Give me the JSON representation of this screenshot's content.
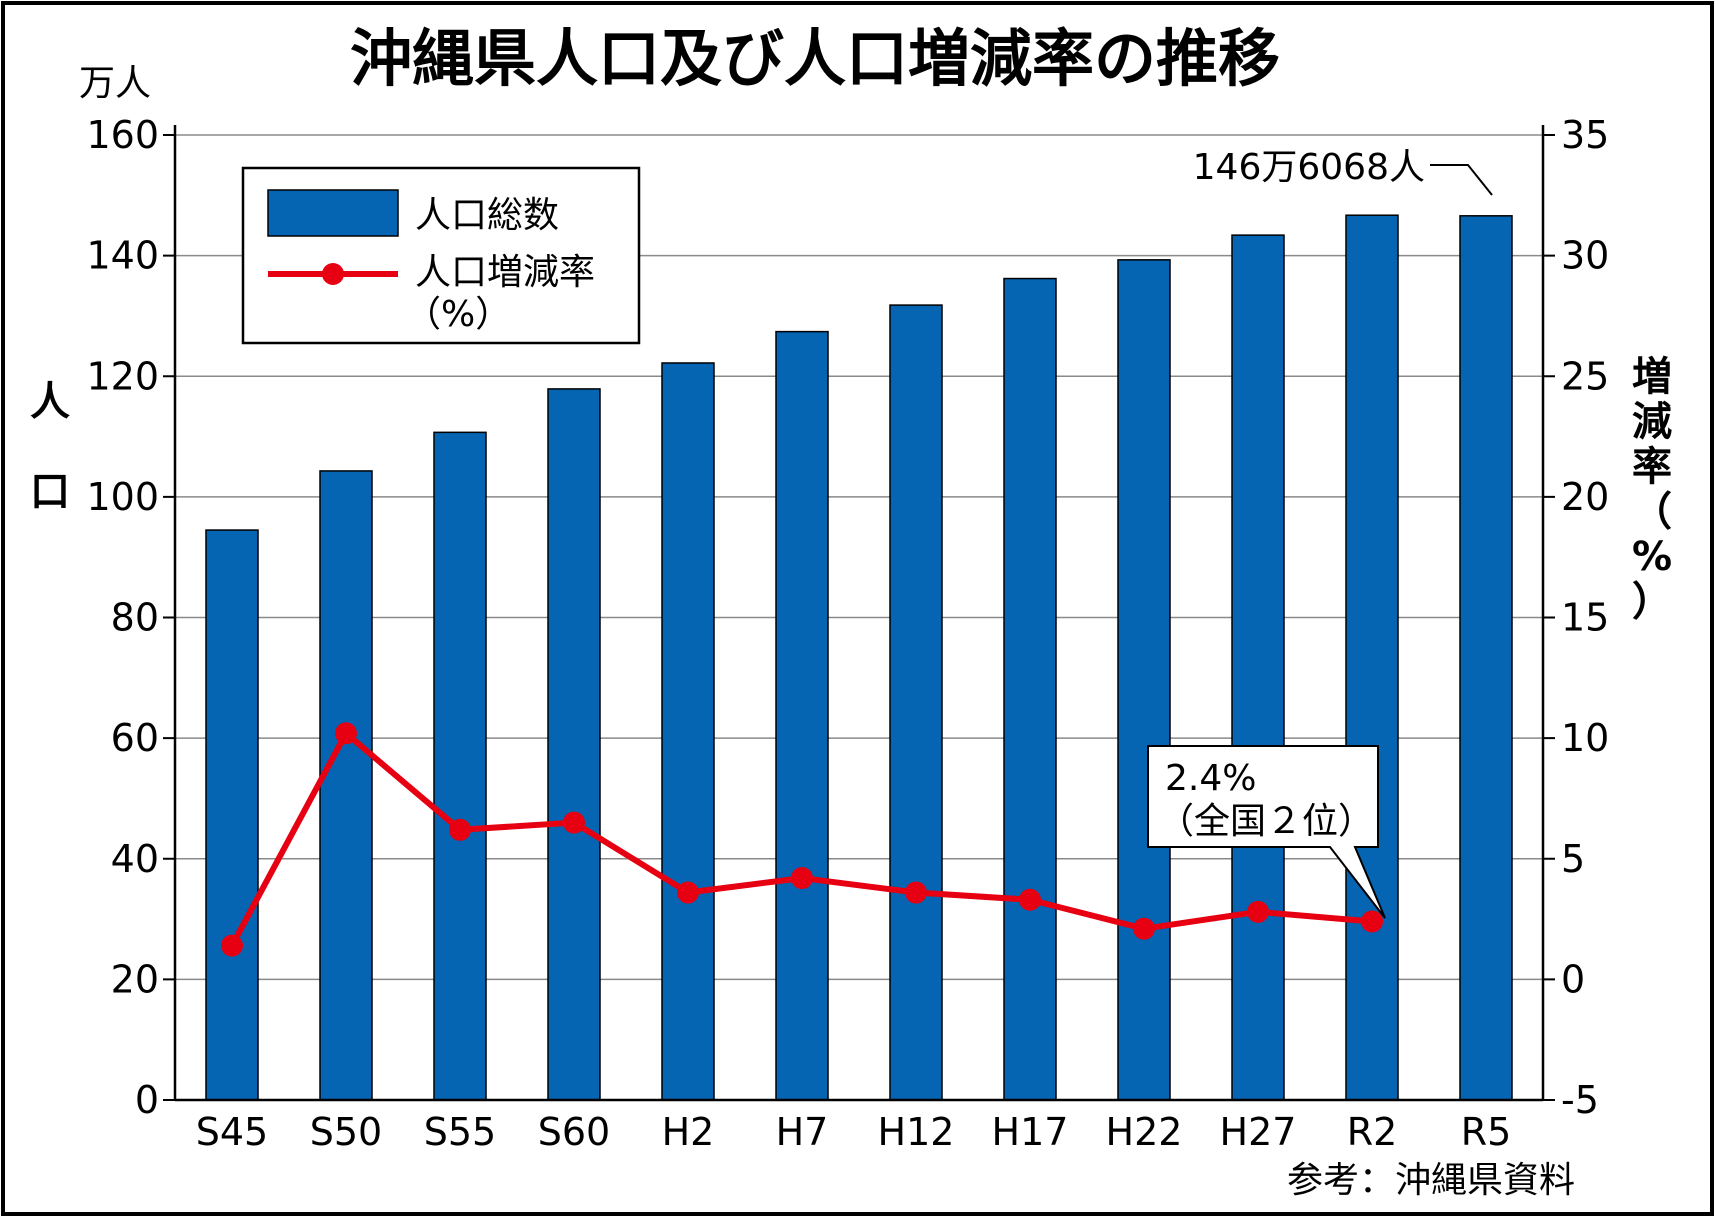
{
  "chart_data": {
    "type": "bar+line",
    "title": "沖縄県人口及び人口増減率の推移",
    "categories": [
      "S45",
      "S50",
      "S55",
      "S60",
      "H2",
      "H7",
      "H12",
      "H17",
      "H22",
      "H27",
      "R2",
      "R5"
    ],
    "series": [
      {
        "name": "人口総数",
        "type": "bar",
        "axis": "left",
        "color": "#0565B3",
        "values": [
          94.5,
          104.3,
          110.7,
          117.9,
          122.2,
          127.4,
          131.8,
          136.2,
          139.3,
          143.4,
          146.7,
          146.6
        ]
      },
      {
        "name": "人口増減率",
        "name_suffix": "（%）",
        "type": "line",
        "axis": "right",
        "color": "#E60012",
        "values": [
          1.4,
          10.2,
          6.2,
          6.5,
          3.6,
          4.2,
          3.6,
          3.3,
          2.1,
          2.8,
          2.4,
          null
        ]
      }
    ],
    "y_left": {
      "unit_label": "万人",
      "label": "人口",
      "ylim": [
        0,
        160
      ],
      "ticks": [
        "0",
        "20",
        "40",
        "60",
        "80",
        "100",
        "120",
        "140",
        "160"
      ]
    },
    "y_right": {
      "label": "増減率（%）",
      "ylim": [
        -5,
        35
      ],
      "ticks": [
        "-5",
        "0",
        "5",
        "10",
        "15",
        "20",
        "25",
        "30",
        "35"
      ]
    },
    "annotations": [
      {
        "text": "146万6068人",
        "category": "R5",
        "series": "人口総数"
      },
      {
        "text": "2.4%",
        "text2": "（全国２位）",
        "category": "R2",
        "series": "人口増減率"
      }
    ],
    "grid": true,
    "legend": "top-left",
    "source": "参考：沖縄県資料"
  }
}
